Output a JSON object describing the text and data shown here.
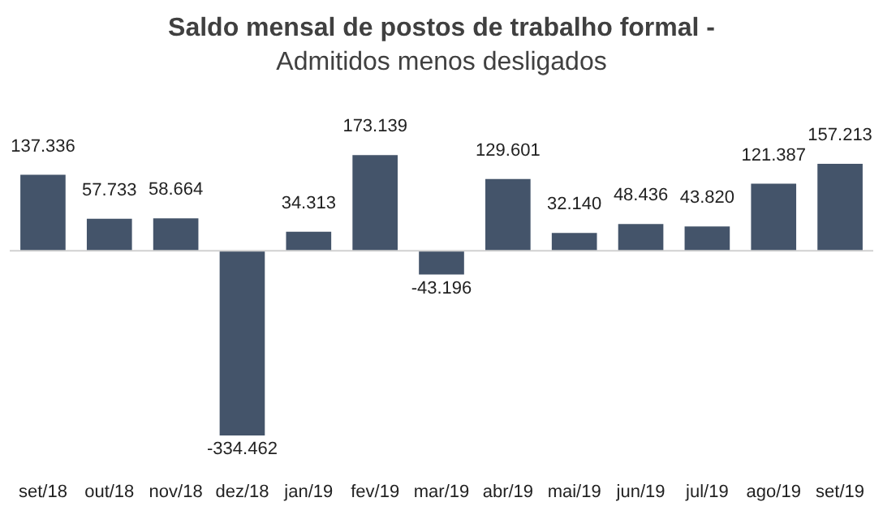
{
  "chart_data": {
    "type": "bar",
    "title": "Saldo mensal de postos de trabalho formal -",
    "subtitle": "Admitidos menos desligados",
    "categories": [
      "set/18",
      "out/18",
      "nov/18",
      "dez/18",
      "jan/19",
      "fev/19",
      "mar/19",
      "abr/19",
      "mai/19",
      "jun/19",
      "jul/19",
      "ago/19",
      "set/19"
    ],
    "values": [
      137336,
      57733,
      58664,
      -334462,
      34313,
      173139,
      -43196,
      129601,
      32140,
      48436,
      43820,
      121387,
      157213
    ],
    "value_labels": [
      "137.336",
      "57.733",
      "58.664",
      "-334.462",
      "34.313",
      "173.139",
      "-43.196",
      "129.601",
      "32.140",
      "48.436",
      "43.820",
      "121.387",
      "157.213"
    ],
    "color": "#44546a",
    "grid": false,
    "legend": false
  }
}
